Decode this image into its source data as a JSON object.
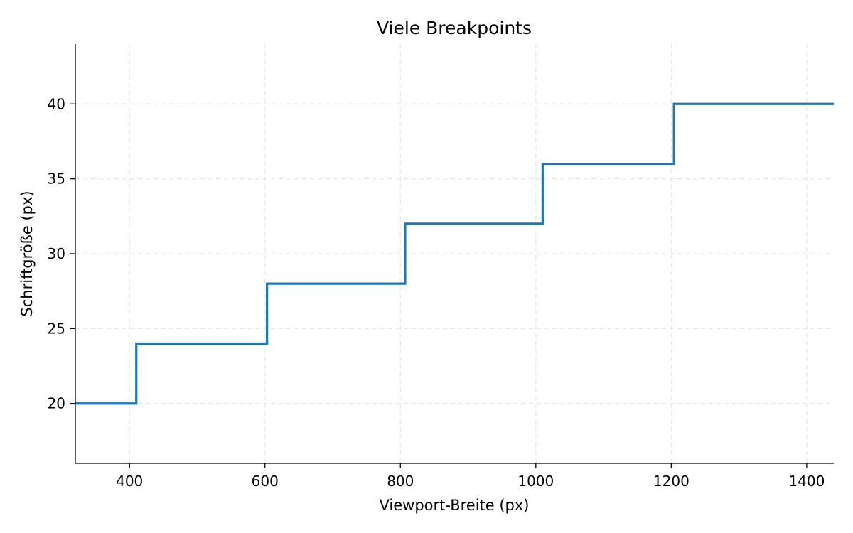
{
  "chart_data": {
    "type": "line",
    "drawstyle": "steps-post",
    "title": "Viele Breakpoints",
    "xlabel": "Viewport-Breite (px)",
    "ylabel": "Schriftgröße (px)",
    "xlim": [
      320,
      1440
    ],
    "ylim": [
      16,
      44
    ],
    "xticks": [
      400,
      600,
      800,
      1000,
      1200,
      1400
    ],
    "yticks": [
      20,
      25,
      30,
      35,
      40
    ],
    "grid": true,
    "series": [
      {
        "color": "#1f77b4",
        "x": [
          320,
          410,
          603,
          807,
          1010,
          1204,
          1440
        ],
        "y": [
          20,
          24,
          28,
          32,
          36,
          40,
          40
        ]
      }
    ]
  }
}
